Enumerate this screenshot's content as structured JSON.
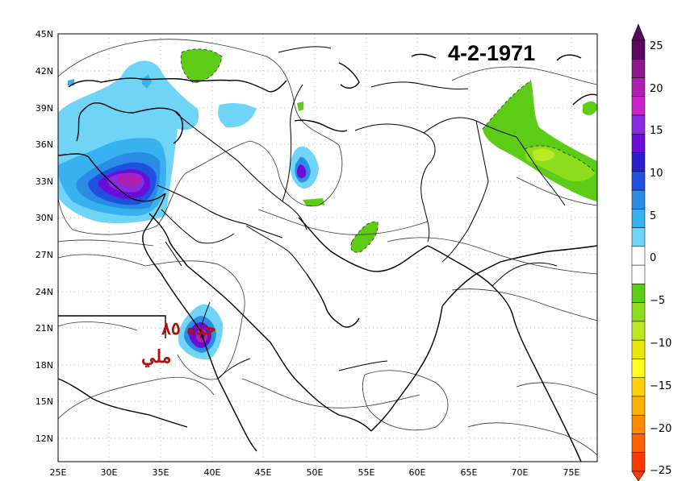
{
  "title": "4-2-1971",
  "annotation": {
    "line1": "جده ٨٥",
    "line2": "ملي"
  },
  "axes": {
    "lon_ticks": [
      "25E",
      "30E",
      "35E",
      "40E",
      "45E",
      "50E",
      "55E",
      "60E",
      "65E",
      "70E",
      "75E"
    ],
    "lat_ticks": [
      "45N",
      "42N",
      "39N",
      "36N",
      "33N",
      "30N",
      "27N",
      "24N",
      "21N",
      "18N",
      "15N",
      "12N"
    ]
  },
  "colorbar": {
    "labels": [
      "25",
      "20",
      "15",
      "10",
      "5",
      "0",
      "−5",
      "−10",
      "−15",
      "−20",
      "−25"
    ],
    "colors": [
      "#5a0a5a",
      "#8c1a8c",
      "#b020b0",
      "#cc22cc",
      "#8a2be2",
      "#6a0dd8",
      "#2d1fd0",
      "#2050e0",
      "#2b8ce6",
      "#37b2ee",
      "#6fd4f5",
      "#ffffff",
      "#ffffff",
      "#5ccc16",
      "#8edc1e",
      "#bce824",
      "#e8e800",
      "#ffff22",
      "#ffd000",
      "#ffb000",
      "#ff8a00",
      "#ff6000",
      "#ff3a00"
    ]
  },
  "legend_colors": {
    "positive_strong": "#8c1a8c",
    "positive_mid": "#2050e0",
    "positive_weak": "#6fd4f5",
    "negative_weak": "#5ccc16"
  }
}
